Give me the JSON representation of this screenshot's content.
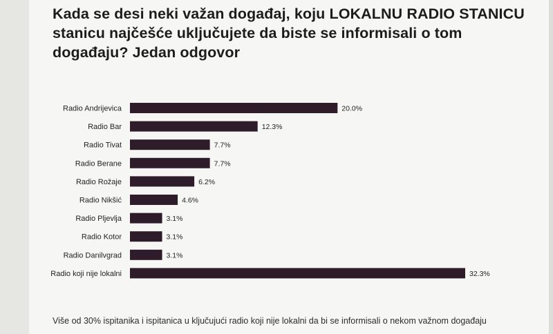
{
  "title": "Kada se desi neki važan događaj, koju LOKALNU RADIO STANICU stanicu najčešće uključujete da biste se informisali o tom događaju? Jedan odgovor",
  "footnote": "Više od 30% ispitanika i ispitanica u ključujući radio koji nije lokalni da bi se informisali o nekom važnom događaju",
  "colors": {
    "bar": "#2e1c2b",
    "background": "#f6f6f4"
  },
  "chart_data": {
    "type": "bar",
    "orientation": "horizontal",
    "categories": [
      "Radio Andrijevica",
      "Radio Bar",
      "Radio Tivat",
      "Radio Berane",
      "Radio Rožaje",
      "Radio Nikšić",
      "Radio Pljevlja",
      "Radio Kotor",
      "Radio Danilvgrad",
      "Radio koji nije lokalni"
    ],
    "values": [
      20.0,
      12.3,
      7.7,
      7.7,
      6.2,
      4.6,
      3.1,
      3.1,
      3.1,
      32.3
    ],
    "value_labels": [
      "20.0%",
      "12.3%",
      "7.7%",
      "7.7%",
      "6.2%",
      "4.6%",
      "3.1%",
      "3.1%",
      "3.1%",
      "32.3%"
    ],
    "xlim": [
      0,
      32.3
    ],
    "grid": false,
    "legend": "none"
  }
}
